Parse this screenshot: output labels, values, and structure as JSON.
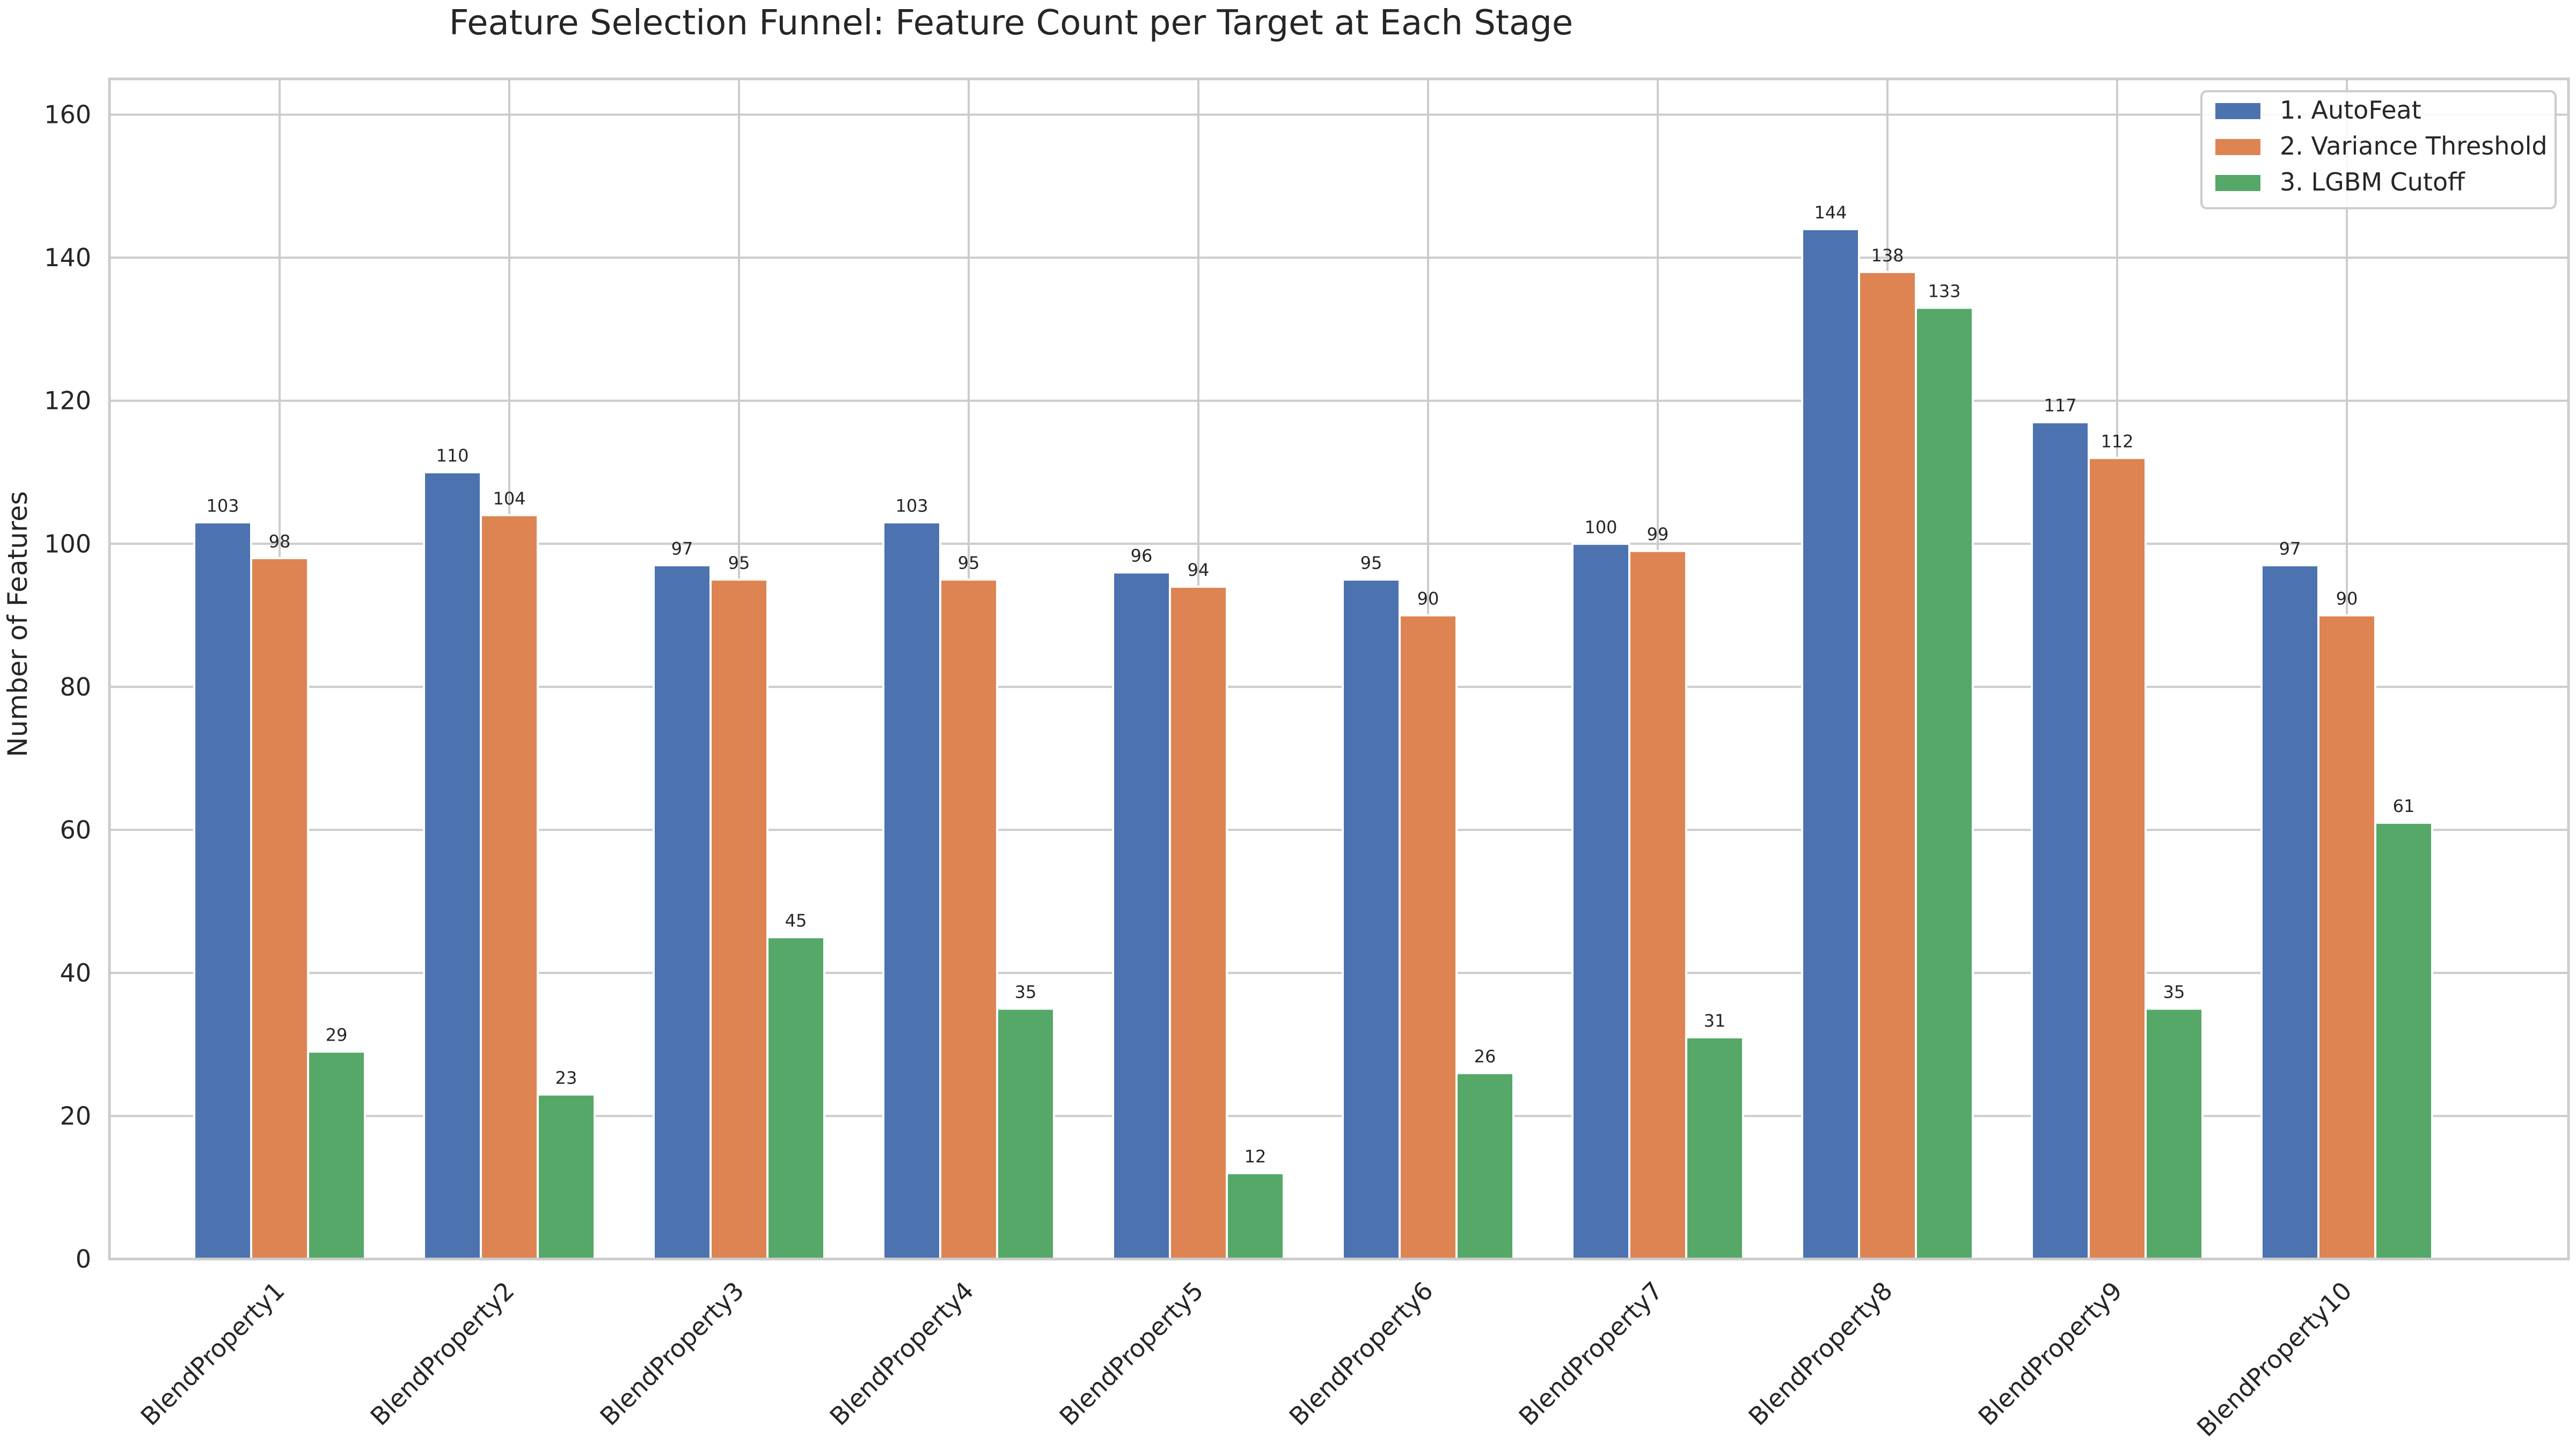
{
  "chart_data": {
    "type": "bar",
    "title": "Feature Selection Funnel: Feature Count per Target at Each Stage",
    "xlabel": "",
    "ylabel": "Number of Features",
    "ylim": [
      0,
      165
    ],
    "yticks": [
      "0",
      "20",
      "40",
      "60",
      "80",
      "100",
      "120",
      "140",
      "160"
    ],
    "grid": true,
    "legend_position": "top-right",
    "categories": [
      "BlendProperty1",
      "BlendProperty2",
      "BlendProperty3",
      "BlendProperty4",
      "BlendProperty5",
      "BlendProperty6",
      "BlendProperty7",
      "BlendProperty8",
      "BlendProperty9",
      "BlendProperty10"
    ],
    "series": [
      {
        "name": "1. AutoFeat",
        "color": "#4c72b0",
        "values": [
          103,
          110,
          97,
          103,
          96,
          95,
          100,
          144,
          117,
          97
        ]
      },
      {
        "name": "2. Variance Threshold",
        "color": "#dd8452",
        "values": [
          98,
          104,
          95,
          95,
          94,
          90,
          99,
          138,
          112,
          90
        ]
      },
      {
        "name": "3. LGBM Cutoff",
        "color": "#55a868",
        "values": [
          29,
          23,
          45,
          35,
          12,
          26,
          31,
          133,
          35,
          61
        ]
      }
    ]
  }
}
